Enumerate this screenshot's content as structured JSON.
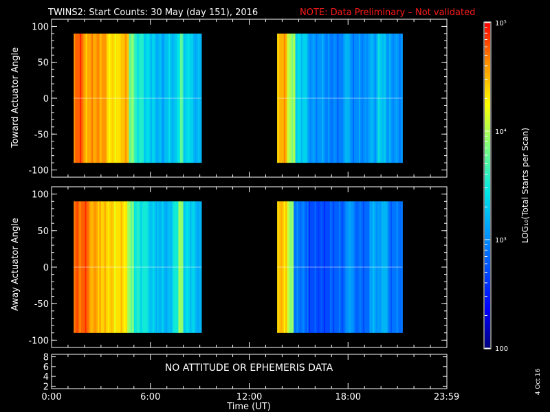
{
  "title": "TWINS2: Start Counts: 30 May (day 151), 2016",
  "note": "NOTE: Data Preliminary – Not validated",
  "no_data_message": "NO ATTITUDE OR EPHEMERIS DATA",
  "date_stamp": "4 Oct 16",
  "colorbar_label": "LOG₁₀(Total Starts per Scan)",
  "colors": {
    "title": "#ffffff",
    "note": "#ff1a1a",
    "background": "#000000"
  },
  "chart_data": [
    {
      "type": "heatmap",
      "panel": "top",
      "ylabel": "Toward Actuator Angle",
      "xlim": [
        0,
        24
      ],
      "ylim": [
        -110,
        110
      ],
      "y_ticks": [
        100,
        50,
        0,
        -50,
        -100
      ],
      "data_y_range": [
        -90,
        90
      ],
      "segments": [
        {
          "x_start": 1.35,
          "x_end": 9.1,
          "bands": [
            {
              "x": 1.35,
              "level": 4.75
            },
            {
              "x": 1.9,
              "level": 4.55
            },
            {
              "x": 2.6,
              "level": 4.6
            },
            {
              "x": 3.3,
              "level": 4.35
            },
            {
              "x": 4.2,
              "level": 4.45
            },
            {
              "x": 4.7,
              "level": 3.9
            },
            {
              "x": 5.0,
              "level": 3.55
            },
            {
              "x": 5.6,
              "level": 3.35
            },
            {
              "x": 6.2,
              "level": 3.2
            },
            {
              "x": 6.9,
              "level": 3.25
            },
            {
              "x": 7.5,
              "level": 3.45
            },
            {
              "x": 7.8,
              "level": 3.7
            },
            {
              "x": 8.0,
              "level": 3.35
            },
            {
              "x": 8.5,
              "level": 3.2
            }
          ]
        },
        {
          "x_start": 13.7,
          "x_end": 21.3,
          "bands": [
            {
              "x": 13.7,
              "level": 4.5
            },
            {
              "x": 14.3,
              "level": 4.0
            },
            {
              "x": 14.8,
              "level": 3.35
            },
            {
              "x": 15.5,
              "level": 3.05
            },
            {
              "x": 16.6,
              "level": 2.95
            },
            {
              "x": 17.7,
              "level": 3.2
            },
            {
              "x": 18.1,
              "level": 3.0
            },
            {
              "x": 19.2,
              "level": 3.15
            },
            {
              "x": 19.8,
              "level": 3.3
            },
            {
              "x": 20.3,
              "level": 3.05
            }
          ]
        }
      ]
    },
    {
      "type": "heatmap",
      "panel": "middle",
      "ylabel": "Away Actuator Angle",
      "xlim": [
        0,
        24
      ],
      "ylim": [
        -110,
        110
      ],
      "y_ticks": [
        100,
        50,
        0,
        -50,
        -100
      ],
      "data_y_range": [
        -90,
        90
      ],
      "segments": [
        {
          "x_start": 1.35,
          "x_end": 9.1,
          "bands": [
            {
              "x": 1.35,
              "level": 4.75
            },
            {
              "x": 2.2,
              "level": 4.55
            },
            {
              "x": 3.0,
              "level": 4.4
            },
            {
              "x": 3.8,
              "level": 4.35
            },
            {
              "x": 4.6,
              "level": 3.9
            },
            {
              "x": 5.0,
              "level": 3.5
            },
            {
              "x": 5.8,
              "level": 3.3
            },
            {
              "x": 6.5,
              "level": 3.2
            },
            {
              "x": 7.3,
              "level": 3.5
            },
            {
              "x": 7.7,
              "level": 3.9
            },
            {
              "x": 8.0,
              "level": 3.35
            },
            {
              "x": 8.6,
              "level": 3.2
            }
          ]
        },
        {
          "x_start": 13.7,
          "x_end": 21.3,
          "bands": [
            {
              "x": 13.7,
              "level": 4.45
            },
            {
              "x": 14.3,
              "level": 3.95
            },
            {
              "x": 14.7,
              "level": 2.9
            },
            {
              "x": 15.6,
              "level": 2.7
            },
            {
              "x": 16.9,
              "level": 2.8
            },
            {
              "x": 17.8,
              "level": 3.05
            },
            {
              "x": 18.3,
              "level": 2.85
            },
            {
              "x": 19.3,
              "level": 3.1
            },
            {
              "x": 19.9,
              "level": 3.2
            },
            {
              "x": 20.4,
              "level": 2.9
            }
          ]
        }
      ]
    },
    {
      "type": "line",
      "panel": "bottom",
      "xlabel": "Time (UT)",
      "ylim": [
        1.5,
        8.5
      ],
      "y_ticks": [
        8,
        6,
        4,
        2
      ],
      "x_ticks": [
        0,
        6,
        12,
        18,
        23.983
      ],
      "x_tick_labels": [
        "0:00",
        "6:00",
        "12:00",
        "18:00",
        "23:59"
      ]
    }
  ],
  "colorbar": {
    "scale": "log",
    "range": [
      2,
      5
    ],
    "major_ticks": [
      {
        "value": 5,
        "label": "10⁵"
      },
      {
        "value": 4,
        "label": "10⁴"
      },
      {
        "value": 3,
        "label": "10³"
      },
      {
        "value": 2,
        "label": "100"
      }
    ]
  }
}
